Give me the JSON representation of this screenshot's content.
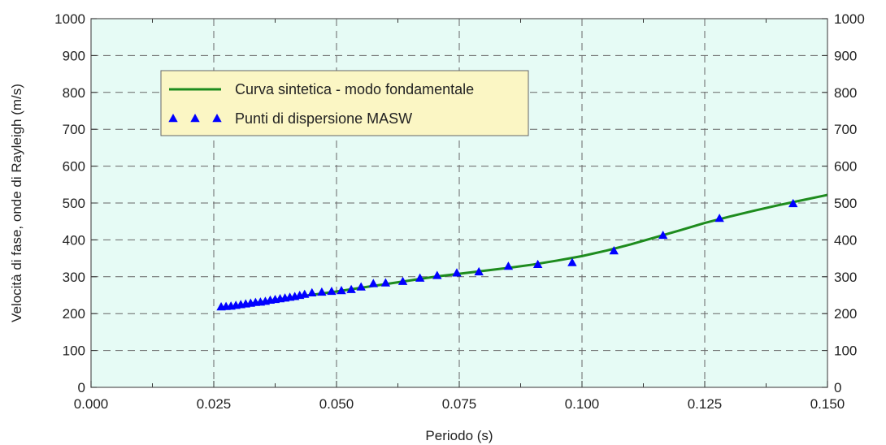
{
  "chart_data": {
    "type": "line",
    "xlabel": "Periodo (s)",
    "ylabel": "Velocità di fase, onde di Rayleigh (m/s)",
    "xlim": [
      0.0,
      0.15
    ],
    "ylim": [
      0,
      1000
    ],
    "x_ticks": [
      "0.000",
      "0.025",
      "0.050",
      "0.075",
      "0.100",
      "0.125",
      "0.150"
    ],
    "y_ticks": [
      "0",
      "100",
      "200",
      "300",
      "400",
      "500",
      "600",
      "700",
      "800",
      "900",
      "1000"
    ],
    "grid": true,
    "legend_position": "top-left",
    "colors": {
      "plot_background": "#e6fbf5",
      "legend_background": "#fbf6c4",
      "curve": "#1e8c1e",
      "points": "#0000ff",
      "grid": "#666666"
    },
    "series": [
      {
        "name": "Curva sintetica - modo fondamentale",
        "type": "line",
        "x": [
          0.0265,
          0.03,
          0.035,
          0.04,
          0.045,
          0.05,
          0.055,
          0.06,
          0.065,
          0.07,
          0.075,
          0.08,
          0.085,
          0.09,
          0.095,
          0.1,
          0.105,
          0.11,
          0.115,
          0.12,
          0.125,
          0.13,
          0.135,
          0.14,
          0.145,
          0.15
        ],
        "y": [
          213,
          221,
          232,
          242,
          251,
          260,
          270,
          280,
          290,
          300,
          308,
          316,
          324,
          333,
          344,
          356,
          371,
          388,
          407,
          426,
          446,
          463,
          479,
          494,
          508,
          522
        ]
      },
      {
        "name": "Punti di dispersione MASW",
        "type": "scatter",
        "x": [
          0.0265,
          0.0275,
          0.0285,
          0.0295,
          0.0305,
          0.0315,
          0.0325,
          0.0335,
          0.0345,
          0.0355,
          0.0365,
          0.0375,
          0.0385,
          0.0395,
          0.0405,
          0.0415,
          0.0425,
          0.0435,
          0.045,
          0.047,
          0.049,
          0.051,
          0.053,
          0.055,
          0.0575,
          0.06,
          0.0635,
          0.067,
          0.0705,
          0.0745,
          0.079,
          0.085,
          0.091,
          0.098,
          0.1065,
          0.1165,
          0.128,
          0.143
        ],
        "y": [
          218,
          219,
          220,
          222,
          224,
          226,
          228,
          230,
          231,
          233,
          236,
          238,
          240,
          242,
          244,
          246,
          249,
          252,
          256,
          258,
          260,
          262,
          265,
          272,
          281,
          283,
          287,
          296,
          303,
          310,
          313,
          328,
          333,
          338,
          370,
          412,
          458,
          498
        ]
      }
    ]
  }
}
